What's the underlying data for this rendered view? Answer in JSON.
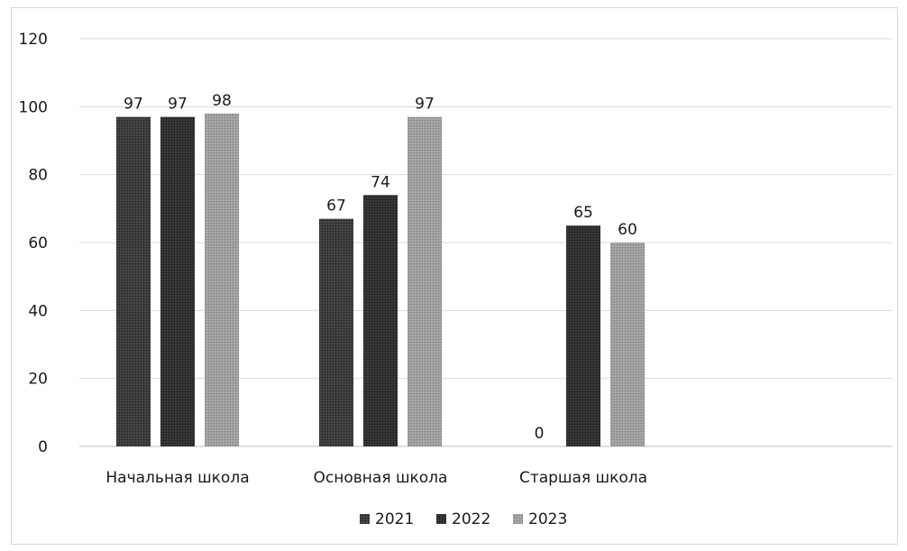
{
  "chart_data": {
    "type": "bar",
    "title": "",
    "xlabel": "",
    "ylabel": "",
    "categories": [
      "Начальная школа",
      "Основная школа",
      "Старшая школа"
    ],
    "series": [
      {
        "name": "2021",
        "values": [
          97,
          67,
          0
        ],
        "color": "#3a3a3a"
      },
      {
        "name": "2022",
        "values": [
          97,
          74,
          65
        ],
        "color": "#2f2f2f"
      },
      {
        "name": "2023",
        "values": [
          98,
          97,
          60
        ],
        "color": "#9c9c9c"
      }
    ],
    "ylim": [
      0,
      120
    ],
    "yticks": [
      0,
      20,
      40,
      60,
      80,
      100,
      120
    ],
    "grid": true,
    "legend_position": "bottom",
    "data_labels": true
  }
}
